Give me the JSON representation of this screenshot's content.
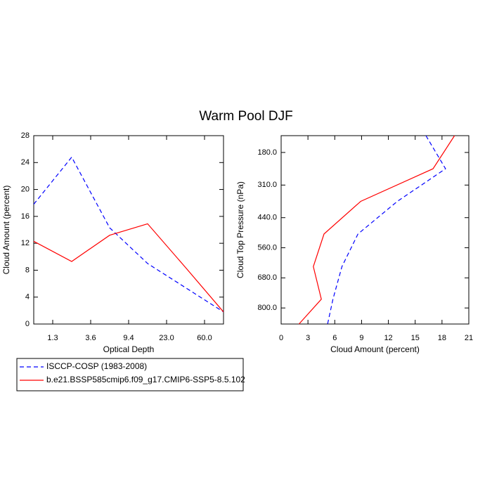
{
  "title": "Warm Pool DJF",
  "legend": {
    "position": "bottom-left"
  },
  "chart_data": [
    {
      "type": "line",
      "xlabel": "Optical Depth",
      "ylabel": "Cloud Amount (percent)",
      "x": [
        0,
        1,
        2,
        3,
        4,
        5
      ],
      "xlim": [
        0,
        5
      ],
      "xticks": [
        {
          "value": 0.5,
          "label": "1.3"
        },
        {
          "value": 1.5,
          "label": "3.6"
        },
        {
          "value": 2.5,
          "label": "9.4"
        },
        {
          "value": 3.5,
          "label": "23.0"
        },
        {
          "value": 4.5,
          "label": "60.0"
        }
      ],
      "ylim": [
        0,
        28
      ],
      "yticks": [
        0,
        4,
        8,
        12,
        16,
        20,
        24,
        28
      ],
      "series": [
        {
          "name": "ISCCP-COSP (1983-2008)",
          "color": "#0000ff",
          "dash": "dashed",
          "values": [
            17.8,
            24.8,
            14.3,
            9.0,
            5.4,
            1.8
          ]
        },
        {
          "name": "b.e21.BSSP585cmip6.f09_g17.CMIP6-SSP5-8.5.102",
          "color": "#ff0000",
          "dash": "solid",
          "values": [
            12.3,
            9.3,
            13.2,
            14.9,
            8.4,
            1.8
          ]
        }
      ]
    },
    {
      "type": "profile",
      "xlabel": "Cloud Amount (percent)",
      "ylabel": "Cloud Top Pressure (nPa)",
      "y": [
        113,
        245,
        375,
        505,
        635,
        765,
        864
      ],
      "xlim": [
        0,
        21
      ],
      "xticks": [
        0,
        3,
        6,
        9,
        12,
        15,
        18,
        21
      ],
      "ylim": [
        113,
        864
      ],
      "y_reversed": true,
      "yticks": [
        {
          "value": 180,
          "label": "180.0"
        },
        {
          "value": 310,
          "label": "310.0"
        },
        {
          "value": 440,
          "label": "440.0"
        },
        {
          "value": 560,
          "label": "560.0"
        },
        {
          "value": 680,
          "label": "680.0"
        },
        {
          "value": 800,
          "label": "800.0"
        }
      ],
      "series": [
        {
          "color": "#0000ff",
          "dash": "dashed",
          "values": [
            16.2,
            18.4,
            13.0,
            8.6,
            6.8,
            5.8,
            5.2
          ]
        },
        {
          "color": "#ff0000",
          "dash": "solid",
          "values": [
            19.4,
            17.0,
            8.9,
            4.8,
            3.6,
            4.5,
            2.0
          ]
        }
      ]
    }
  ]
}
